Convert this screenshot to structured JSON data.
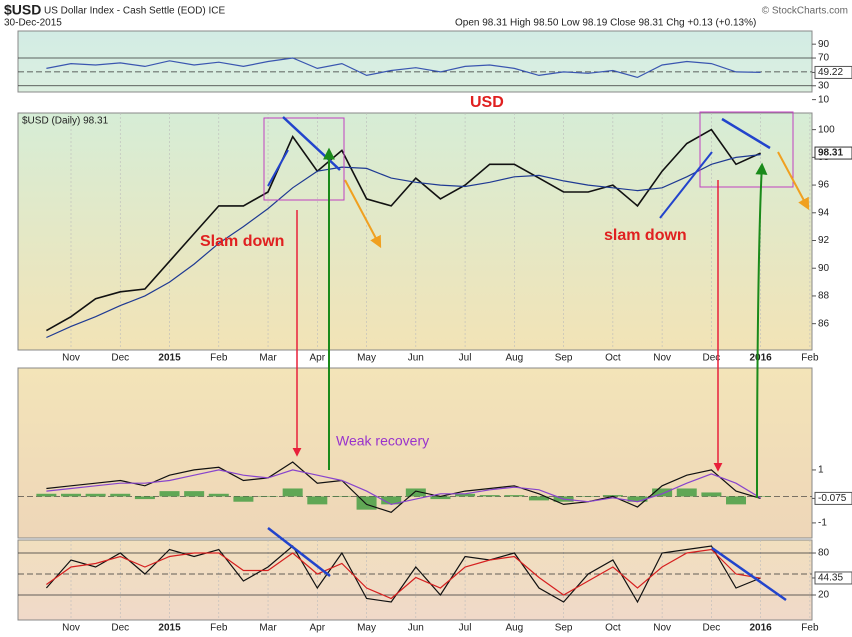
{
  "header": {
    "symbol": "$USD",
    "name": "US Dollar Index - Cash Settle (EOD) ICE",
    "date": "30-Dec-2015",
    "quote": "Open 98.31 High 98.50 Low 98.19 Close 98.31 Chg +0.13 (+0.13%)",
    "credit": "© StockCharts.com",
    "price_legend": "$USD (Daily) 98.31"
  },
  "annotations": {
    "title": "USD",
    "slam1": "Slam down",
    "slam2": "slam down",
    "weak": "Weak recovery"
  },
  "chart_data": [
    {
      "type": "line",
      "ylim": [
        21,
        109
      ],
      "yticks": [
        90,
        70,
        49.22,
        30,
        10
      ],
      "hlines": [
        70,
        50,
        30
      ],
      "series": [
        {
          "color": "#3a56b0",
          "values": [
            55,
            62,
            60,
            63,
            58,
            66,
            60,
            64,
            58,
            65,
            70,
            55,
            62,
            45,
            52,
            56,
            50,
            58,
            60,
            55,
            45,
            50,
            48,
            52,
            42,
            60,
            65,
            62,
            50,
            49.22,
            null,
            null
          ]
        }
      ]
    },
    {
      "type": "line",
      "ylim": [
        84.1,
        101.2
      ],
      "yticks": [
        86,
        88,
        90,
        92,
        94,
        96,
        98,
        100
      ],
      "last": 98.31,
      "categories": [
        null,
        "Nov",
        null,
        "Dec",
        null,
        "2015",
        null,
        "Feb",
        null,
        "Mar",
        null,
        "Apr",
        null,
        "May",
        null,
        "Jun",
        null,
        "Jul",
        null,
        "Aug",
        null,
        "Sep",
        null,
        "Oct",
        null,
        "Nov",
        null,
        "Dec",
        null,
        "2016",
        null,
        "Feb"
      ],
      "series": [
        {
          "color": "#111111",
          "values": [
            85.5,
            86.5,
            87.8,
            88.3,
            88.5,
            90.5,
            92.5,
            94.5,
            94.5,
            95.5,
            99.5,
            97,
            98.5,
            95,
            94.5,
            96.5,
            95,
            96,
            97.5,
            97.5,
            96.5,
            95.5,
            95.5,
            96,
            94.5,
            97,
            99,
            100,
            97.5,
            98.31,
            null,
            null
          ]
        },
        {
          "color": "#1f3a93",
          "values": [
            85,
            85.8,
            86.5,
            87.3,
            88,
            89,
            90.3,
            91.8,
            93,
            94.3,
            95.8,
            97,
            97.3,
            97.2,
            96.5,
            96.2,
            96,
            95.9,
            96.2,
            96.6,
            96.7,
            96.3,
            96,
            95.8,
            95.6,
            95.8,
            96.6,
            97.5,
            98,
            98.2,
            null,
            null
          ]
        }
      ]
    },
    {
      "type": "line",
      "ylim": [
        -1.57,
        4.85
      ],
      "yticks": [
        1,
        -0.075,
        -1
      ],
      "hlines": [
        0
      ],
      "series": [
        {
          "color": "#3c9a3c",
          "style": "bar",
          "values": [
            0.1,
            0.1,
            0.1,
            0.1,
            -0.1,
            0.2,
            0.2,
            0.1,
            -0.2,
            0,
            0.3,
            -0.3,
            0,
            -0.5,
            -0.3,
            0.3,
            -0.1,
            0.1,
            0.05,
            0.05,
            -0.15,
            -0.2,
            0,
            0.05,
            -0.2,
            0.3,
            0.3,
            0.15,
            -0.3,
            -0.015,
            null,
            null
          ]
        },
        {
          "color": "#111111",
          "values": [
            0.3,
            0.4,
            0.5,
            0.6,
            0.4,
            0.8,
            1.0,
            1.1,
            0.6,
            0.7,
            1.3,
            0.5,
            0.6,
            -0.3,
            -0.6,
            0.2,
            0,
            0.2,
            0.3,
            0.4,
            0.1,
            -0.3,
            -0.2,
            0,
            -0.4,
            0.4,
            0.8,
            1.0,
            0.2,
            -0.075,
            null,
            null
          ]
        },
        {
          "color": "#8844cc",
          "values": [
            0.2,
            0.3,
            0.4,
            0.5,
            0.5,
            0.6,
            0.8,
            1.0,
            0.8,
            0.7,
            1.0,
            0.8,
            0.6,
            0.2,
            -0.3,
            -0.1,
            0.1,
            0.1,
            0.25,
            0.35,
            0.25,
            -0.1,
            -0.2,
            -0.05,
            -0.2,
            0.1,
            0.5,
            0.85,
            0.5,
            -0.06,
            null,
            null
          ]
        }
      ]
    },
    {
      "type": "line",
      "ylim": [
        -15.7,
        98.6
      ],
      "yticks": [
        80,
        44.35,
        20
      ],
      "hlines": [
        80,
        50,
        20
      ],
      "categories": [
        null,
        "Nov",
        null,
        "Dec",
        null,
        "2015",
        null,
        "Feb",
        null,
        "Mar",
        null,
        "Apr",
        null,
        "May",
        null,
        "Jun",
        null,
        "Jul",
        null,
        "Aug",
        null,
        "Sep",
        null,
        "Oct",
        null,
        "Nov",
        null,
        "Dec",
        null,
        "2016",
        null,
        "Feb"
      ],
      "series": [
        {
          "color": "#111111",
          "values": [
            30,
            70,
            60,
            80,
            50,
            85,
            75,
            85,
            40,
            60,
            90,
            30,
            80,
            15,
            10,
            60,
            20,
            75,
            70,
            80,
            30,
            10,
            50,
            70,
            10,
            80,
            85,
            90,
            30,
            44.35,
            null,
            null
          ]
        },
        {
          "color": "#d62020",
          "values": [
            35,
            60,
            65,
            75,
            60,
            75,
            80,
            80,
            55,
            55,
            80,
            50,
            65,
            30,
            15,
            45,
            30,
            60,
            70,
            75,
            45,
            20,
            40,
            60,
            30,
            60,
            80,
            85,
            50,
            44,
            null,
            null
          ]
        }
      ]
    }
  ]
}
